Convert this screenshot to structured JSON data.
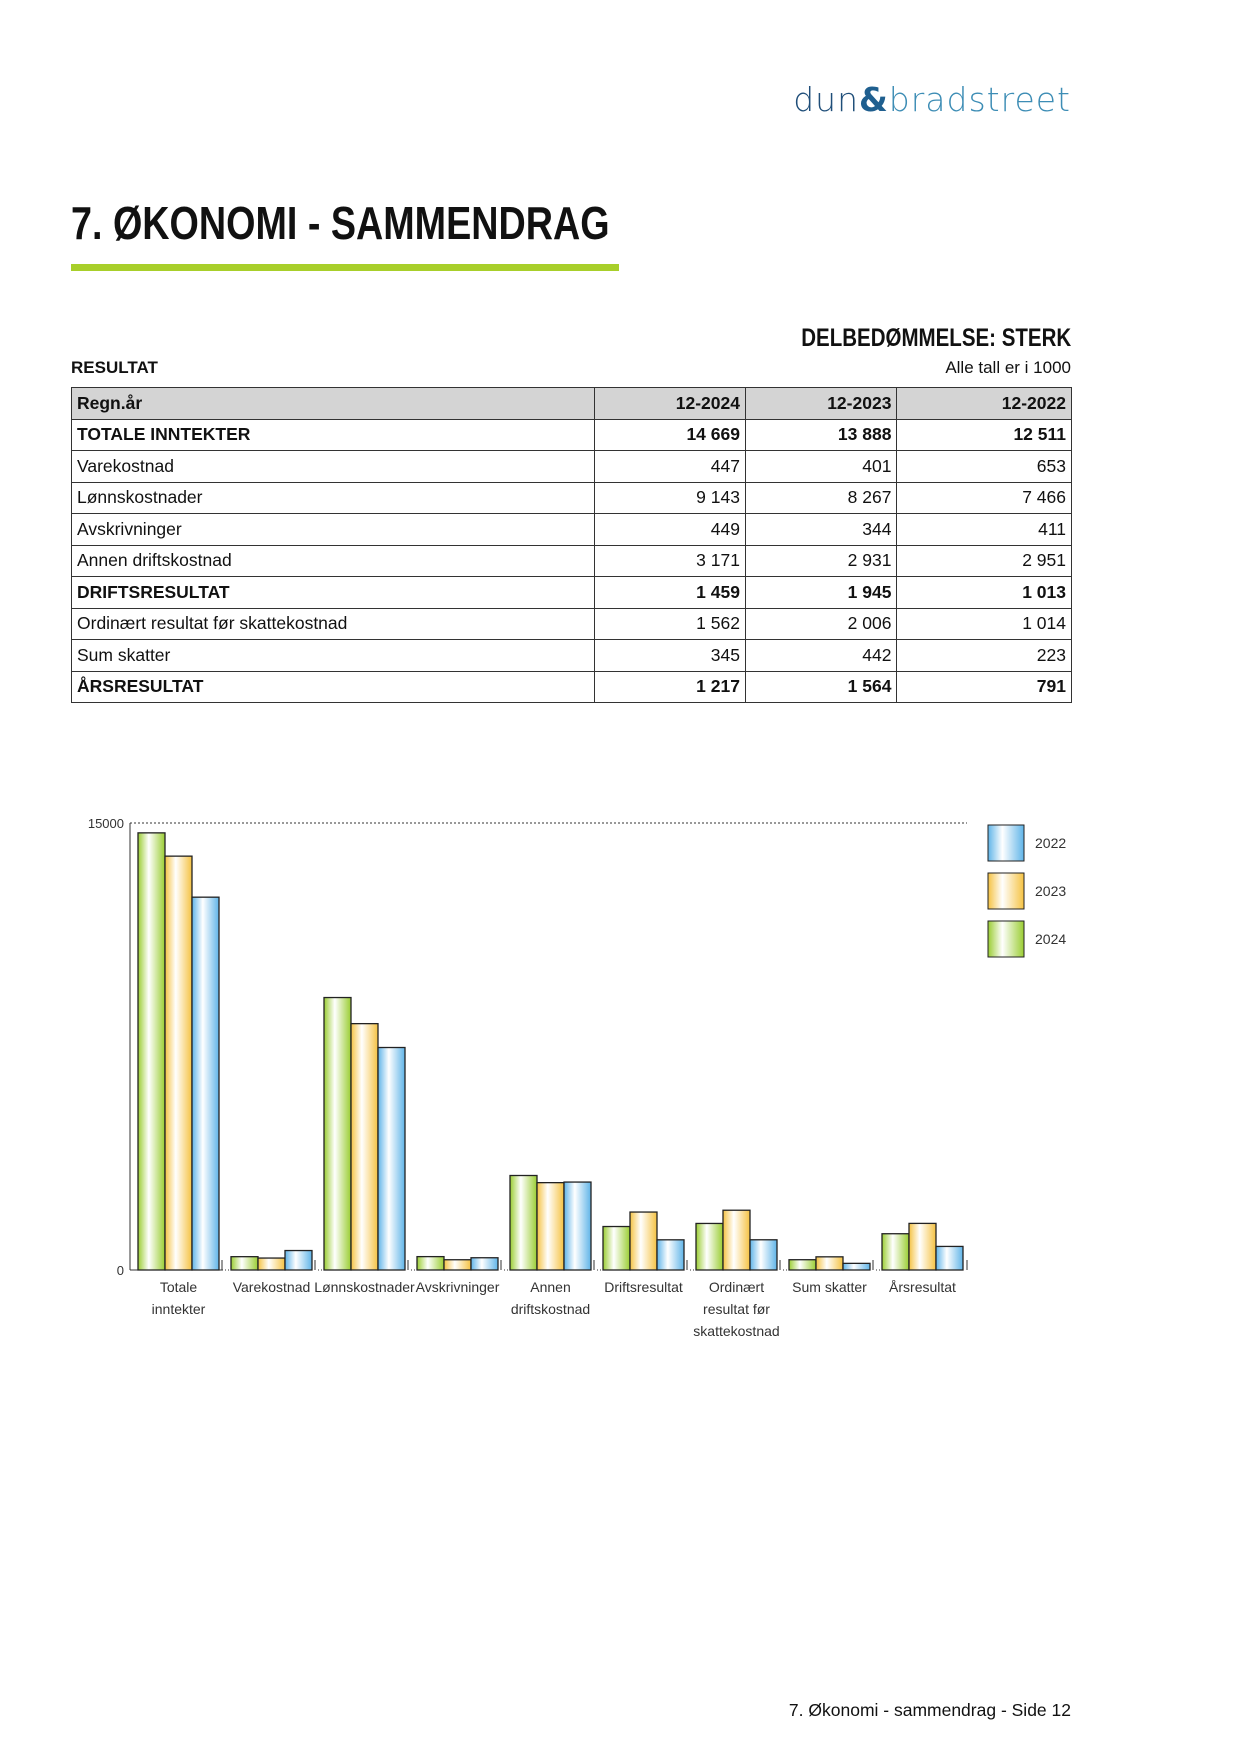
{
  "logo": {
    "left": "dun",
    "amp": "&",
    "right": "bradstreet"
  },
  "title": "7. ØKONOMI - SAMMENDRAG",
  "rating": "DELBEDØMMELSE: STERK",
  "section": "RESULTAT",
  "unit_note": "Alle tall er i 1000",
  "table": {
    "headers": [
      "Regn.år",
      "12-2024",
      "12-2023",
      "12-2022"
    ],
    "rows": [
      {
        "label": "TOTALE INNTEKTER",
        "values": [
          "14 669",
          "13 888",
          "12 511"
        ],
        "bold": true
      },
      {
        "label": "Varekostnad",
        "values": [
          "447",
          "401",
          "653"
        ]
      },
      {
        "label": "Lønnskostnader",
        "values": [
          "9 143",
          "8 267",
          "7 466"
        ]
      },
      {
        "label": "Avskrivninger",
        "values": [
          "449",
          "344",
          "411"
        ]
      },
      {
        "label": "Annen driftskostnad",
        "values": [
          "3 171",
          "2 931",
          "2 951"
        ]
      },
      {
        "label": "DRIFTSRESULTAT",
        "values": [
          "1 459",
          "1 945",
          "1 013"
        ],
        "bold": true
      },
      {
        "label": "Ordinært resultat før skattekostnad",
        "values": [
          "1 562",
          "2 006",
          "1 014"
        ]
      },
      {
        "label": "Sum skatter",
        "values": [
          "345",
          "442",
          "223"
        ]
      },
      {
        "label": "ÅRSRESULTAT",
        "values": [
          "1 217",
          "1 564",
          "791"
        ],
        "bold": true
      }
    ]
  },
  "chart_data": {
    "type": "bar",
    "categories": [
      [
        "Totale",
        "inntekter"
      ],
      [
        "Varekostnad"
      ],
      [
        "Lønnskostnader"
      ],
      [
        "Avskrivninger"
      ],
      [
        "Annen",
        "driftskostnad"
      ],
      [
        "Driftsresultat"
      ],
      [
        "Ordinært",
        "resultat før",
        "skattekostnad"
      ],
      [
        "Sum skatter"
      ],
      [
        "Årsresultat"
      ]
    ],
    "series": [
      {
        "name": "2024",
        "color": "#9acd32",
        "values": [
          14669,
          447,
          9143,
          449,
          3171,
          1459,
          1562,
          345,
          1217
        ]
      },
      {
        "name": "2023",
        "color": "#f5c242",
        "values": [
          13888,
          401,
          8267,
          344,
          2931,
          1945,
          2006,
          442,
          1564
        ]
      },
      {
        "name": "2022",
        "color": "#5fb4e8",
        "values": [
          12511,
          653,
          7466,
          411,
          2951,
          1013,
          1014,
          223,
          791
        ]
      }
    ],
    "ylim": [
      0,
      15000
    ],
    "yticks": [
      "0",
      "15000"
    ],
    "legend_order": [
      "2022",
      "2023",
      "2024"
    ],
    "legend": "right"
  },
  "footer": "7. Økonomi - sammendrag - Side 12"
}
